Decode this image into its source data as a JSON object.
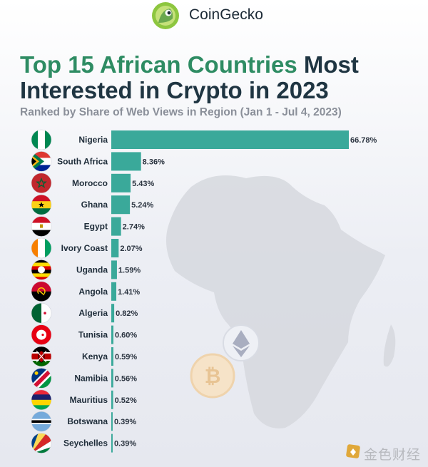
{
  "brand": {
    "name": "CoinGecko",
    "logo_icon": "coingecko-logo-icon"
  },
  "title": {
    "highlight": "Top 15 African Countries",
    "rest_line1": "Most",
    "line2": "Interested in Crypto in 2023"
  },
  "subtitle": "Ranked by Share of Web Views in Region (Jan 1 - Jul 4, 2023)",
  "colors": {
    "bar": "#3aa99a",
    "title_highlight": "#2e8c63",
    "title": "#1f3542"
  },
  "watermark": {
    "text": "金色财经"
  },
  "chart_data": {
    "type": "bar",
    "orientation": "horizontal",
    "title": "Top 15 African Countries Most Interested in Crypto in 2023",
    "subtitle": "Ranked by Share of Web Views in Region (Jan 1 - Jul 4, 2023)",
    "xlabel": "",
    "ylabel": "",
    "grid": false,
    "categories": [
      "Nigeria",
      "South Africa",
      "Morocco",
      "Ghana",
      "Egypt",
      "Ivory Coast",
      "Uganda",
      "Angola",
      "Algeria",
      "Tunisia",
      "Kenya",
      "Namibia",
      "Mauritius",
      "Botswana",
      "Seychelles"
    ],
    "values": [
      66.78,
      8.36,
      5.43,
      5.24,
      2.74,
      2.07,
      1.59,
      1.41,
      0.82,
      0.6,
      0.59,
      0.56,
      0.52,
      0.39,
      0.39
    ],
    "value_labels": [
      "66.78%",
      "8.36%",
      "5.43%",
      "5.24%",
      "2.74%",
      "2.07%",
      "1.59%",
      "1.41%",
      "0.82%",
      "0.60%",
      "0.59%",
      "0.56%",
      "0.52%",
      "0.39%",
      "0.39%"
    ],
    "flag_icons": [
      "nigeria-flag-icon",
      "south-africa-flag-icon",
      "morocco-flag-icon",
      "ghana-flag-icon",
      "egypt-flag-icon",
      "ivory-coast-flag-icon",
      "uganda-flag-icon",
      "angola-flag-icon",
      "algeria-flag-icon",
      "tunisia-flag-icon",
      "kenya-flag-icon",
      "namibia-flag-icon",
      "mauritius-flag-icon",
      "botswana-flag-icon",
      "seychelles-flag-icon"
    ],
    "xlim": [
      0,
      66.78
    ]
  }
}
